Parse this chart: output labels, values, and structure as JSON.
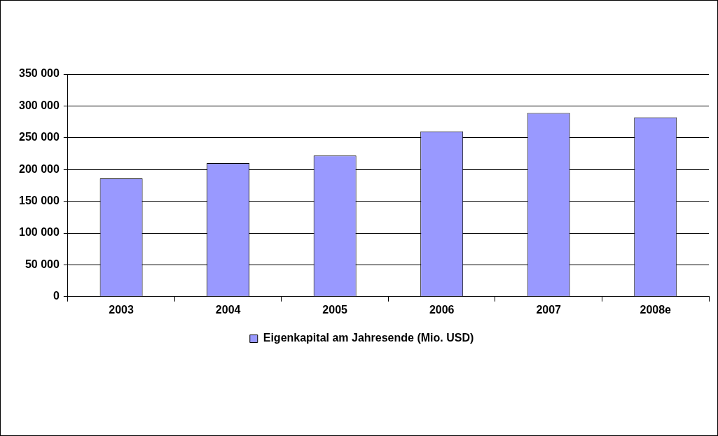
{
  "chart_data": {
    "type": "bar",
    "categories": [
      "2003",
      "2004",
      "2005",
      "2006",
      "2007",
      "2008e"
    ],
    "series": [
      {
        "name": "Eigenkapital am Jahresende (Mio. USD)",
        "color": "#9999ff",
        "values": [
          186000,
          210000,
          222000,
          260000,
          289000,
          282000
        ]
      }
    ],
    "ylim": [
      0,
      350000
    ],
    "yticks": [
      {
        "value": 0,
        "label": "0"
      },
      {
        "value": 50000,
        "label": "50 000"
      },
      {
        "value": 100000,
        "label": "100 000"
      },
      {
        "value": 150000,
        "label": "150 000"
      },
      {
        "value": 200000,
        "label": "200 000"
      },
      {
        "value": 250000,
        "label": "250 000"
      },
      {
        "value": 300000,
        "label": "300 000"
      },
      {
        "value": 350000,
        "label": "350 000"
      }
    ],
    "grid": "y",
    "legend": "bottom"
  }
}
